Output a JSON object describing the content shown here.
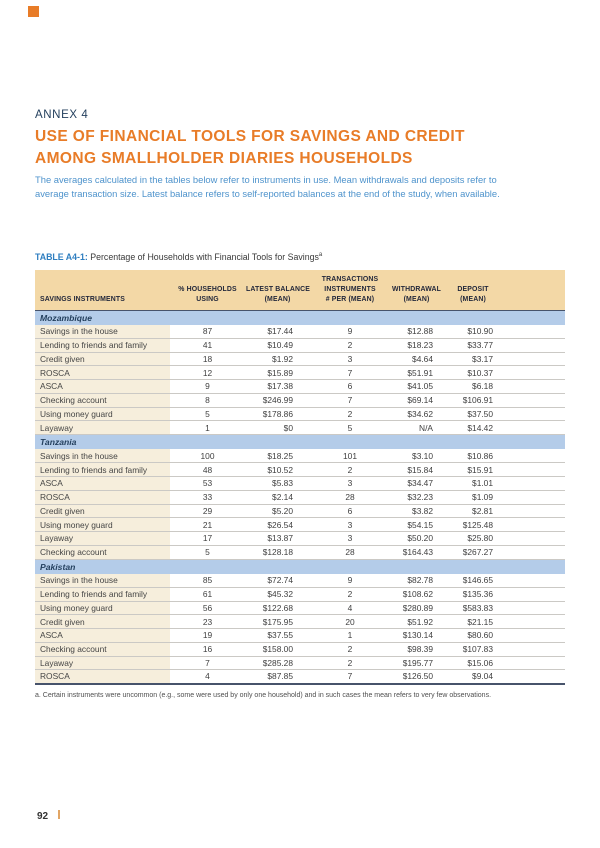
{
  "header": {
    "annex": "ANNEX 4",
    "title_lines": [
      "USE OF FINANCIAL TOOLS FOR SAVINGS AND CREDIT",
      "AMONG SMALLHOLDER DIARIES HOUSEHOLDS"
    ],
    "intro_lines": [
      "The averages calculated in the tables below refer to instruments in use. Mean withdrawals and deposits refer to",
      "average transaction size. Latest balance refers to self-reported balances at the end of the study, when available."
    ]
  },
  "table": {
    "label": "TABLE A4-1:",
    "caption": " Percentage of Households with Financial Tools for Savings",
    "caption_sup": "a",
    "columns": [
      {
        "id": "instrument",
        "lines": [
          "SAVINGS INSTRUMENTS"
        ]
      },
      {
        "id": "pct-households",
        "lines": [
          "% HOUSEHOLDS",
          "USING"
        ]
      },
      {
        "id": "latest-balance",
        "lines": [
          "LATEST BALANCE",
          "(MEAN)"
        ]
      },
      {
        "id": "transactions",
        "lines": [
          "TRANSACTIONS",
          "INSTRUMENTS",
          "# PER (MEAN)"
        ]
      },
      {
        "id": "withdrawal",
        "lines": [
          "WITHDRAWAL",
          "(MEAN)"
        ]
      },
      {
        "id": "deposit",
        "lines": [
          "DEPOSIT",
          "(MEAN)"
        ]
      }
    ],
    "sections": [
      {
        "name": "Mozambique",
        "rows": [
          [
            "Savings in the house",
            "87",
            "$17.44",
            "9",
            "$12.88",
            "$10.90"
          ],
          [
            "Lending to friends and family",
            "41",
            "$10.49",
            "2",
            "$18.23",
            "$33.77"
          ],
          [
            "Credit given",
            "18",
            "$1.92",
            "3",
            "$4.64",
            "$3.17"
          ],
          [
            "ROSCA",
            "12",
            "$15.89",
            "7",
            "$51.91",
            "$10.37"
          ],
          [
            "ASCA",
            "9",
            "$17.38",
            "6",
            "$41.05",
            "$6.18"
          ],
          [
            "Checking account",
            "8",
            "$246.99",
            "7",
            "$69.14",
            "$106.91"
          ],
          [
            "Using money guard",
            "5",
            "$178.86",
            "2",
            "$34.62",
            "$37.50"
          ],
          [
            "Layaway",
            "1",
            "$0",
            "5",
            "N/A",
            "$14.42"
          ]
        ]
      },
      {
        "name": "Tanzania",
        "rows": [
          [
            "Savings in the house",
            "100",
            "$18.25",
            "101",
            "$3.10",
            "$10.86"
          ],
          [
            "Lending to friends and family",
            "48",
            "$10.52",
            "2",
            "$15.84",
            "$15.91"
          ],
          [
            "ASCA",
            "53",
            "$5.83",
            "3",
            "$34.47",
            "$1.01"
          ],
          [
            "ROSCA",
            "33",
            "$2.14",
            "28",
            "$32.23",
            "$1.09"
          ],
          [
            "Credit given",
            "29",
            "$5.20",
            "6",
            "$3.82",
            "$2.81"
          ],
          [
            "Using money guard",
            "21",
            "$26.54",
            "3",
            "$54.15",
            "$125.48"
          ],
          [
            "Layaway",
            "17",
            "$13.87",
            "3",
            "$50.20",
            "$25.80"
          ],
          [
            "Checking account",
            "5",
            "$128.18",
            "28",
            "$164.43",
            "$267.27"
          ]
        ]
      },
      {
        "name": "Pakistan",
        "rows": [
          [
            "Savings in the house",
            "85",
            "$72.74",
            "9",
            "$82.78",
            "$146.65"
          ],
          [
            "Lending to friends and family",
            "61",
            "$45.32",
            "2",
            "$108.62",
            "$135.36"
          ],
          [
            "Using money guard",
            "56",
            "$122.68",
            "4",
            "$280.89",
            "$583.83"
          ],
          [
            "Credit given",
            "23",
            "$175.95",
            "20",
            "$51.92",
            "$21.15"
          ],
          [
            "ASCA",
            "19",
            "$37.55",
            "1",
            "$130.14",
            "$80.60"
          ],
          [
            "Checking account",
            "16",
            "$158.00",
            "2",
            "$98.39",
            "$107.83"
          ],
          [
            "Layaway",
            "7",
            "$285.28",
            "2",
            "$195.77",
            "$15.06"
          ],
          [
            "ROSCA",
            "4",
            "$87.85",
            "7",
            "$126.50",
            "$9.04"
          ]
        ]
      }
    ],
    "footnote": "a. Certain instruments were uncommon (e.g., some were used by only one household) and in such cases the mean refers to very few observations."
  },
  "footer": {
    "page_number": "92"
  },
  "colors": {
    "accent-orange": "#E87C28",
    "navy": "#24405E",
    "body-blue": "#4E93CC",
    "link-blue": "#2E7EC0",
    "header-bg": "#F3D8A6",
    "section-bg": "#B4CCE9",
    "stripe-bg": "#F6EEDC",
    "dark-line": "#47536B",
    "footer-bar": "#E2A665"
  }
}
